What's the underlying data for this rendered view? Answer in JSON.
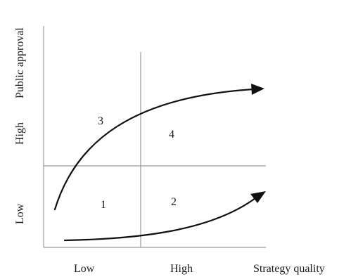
{
  "y_axis": {
    "title": "Public approval",
    "high_label": "High",
    "low_label": "Low"
  },
  "x_axis": {
    "title": "Strategy quality",
    "low_label": "Low",
    "high_label": "High"
  },
  "quadrants": {
    "q1": "1",
    "q2": "2",
    "q3": "3",
    "q4": "4"
  },
  "colors": {
    "axis": "#9a9a9a",
    "arrow": "#111111",
    "text": "#1a1a1a"
  }
}
